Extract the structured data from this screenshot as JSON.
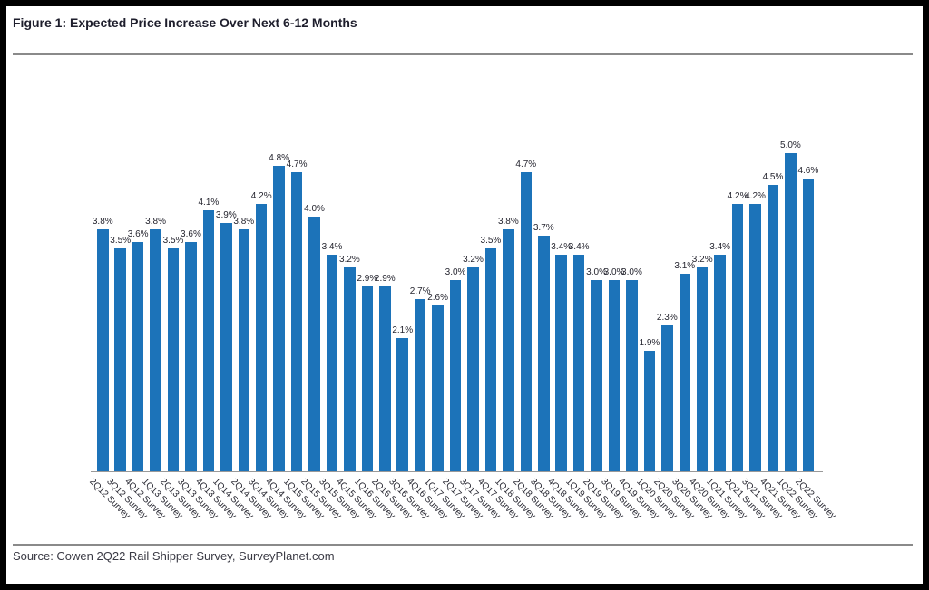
{
  "page": {
    "title": "Figure 1: Expected Price Increase Over Next 6-12 Months",
    "source": "Source: Cowen 2Q22 Rail Shipper Survey, SurveyPlanet.com"
  },
  "colors": {
    "bar": "#1c73b9",
    "title_text": "#1e1e2c",
    "label_text": "#262630",
    "rule": "#8a8a8a",
    "frame": "#000000",
    "axis_line": "#999999"
  },
  "chart_data": {
    "type": "bar",
    "title": "Figure 1: Expected Price Increase Over Next 6-12 Months",
    "xlabel": "",
    "ylabel": "",
    "ylim": [
      0,
      5.5
    ],
    "grid": false,
    "legend": "none",
    "data_labels": true,
    "value_suffix": "%",
    "bar_color": "#1c73b9",
    "categories": [
      "2Q12 Survey",
      "3Q12 Survey",
      "4Q12 Survey",
      "1Q13 Survey",
      "2Q13 Survey",
      "3Q13 Survey",
      "4Q13 Survey",
      "1Q14 Survey",
      "2Q14 Survey",
      "3Q14 Survey",
      "4Q14 Survey",
      "1Q15 Survey",
      "2Q15 Survey",
      "3Q15 Survey",
      "4Q15 Survey",
      "1Q16 Survey",
      "2Q16 Survey",
      "3Q16 Survey",
      "4Q16 Survey",
      "1Q17 Survey",
      "2Q17 Survey",
      "3Q17 Survey",
      "4Q17 Survey",
      "1Q18 Survey",
      "2Q18 Survey",
      "3Q18 Survey",
      "4Q18 Survey",
      "1Q19 Survey",
      "2Q19 Survey",
      "3Q19 Survey",
      "4Q19 Survey",
      "1Q20 Survey",
      "2Q20 Survey",
      "3Q20 Survey",
      "4Q20 Survey",
      "1Q21 Survey",
      "2Q21 Survey",
      "3Q21 Survey",
      "4Q21 Survey",
      "1Q22 Survey",
      "2Q22 Survey"
    ],
    "values": [
      3.8,
      3.5,
      3.6,
      3.8,
      3.5,
      3.6,
      4.1,
      3.9,
      3.8,
      4.2,
      4.8,
      4.7,
      4.0,
      3.4,
      3.2,
      2.9,
      2.9,
      2.1,
      2.7,
      2.6,
      3.0,
      3.2,
      3.5,
      3.8,
      4.7,
      3.7,
      3.4,
      3.4,
      3.0,
      3.0,
      3.0,
      1.9,
      2.3,
      3.1,
      3.2,
      3.4,
      4.2,
      4.2,
      4.5,
      5.0,
      4.6
    ]
  }
}
